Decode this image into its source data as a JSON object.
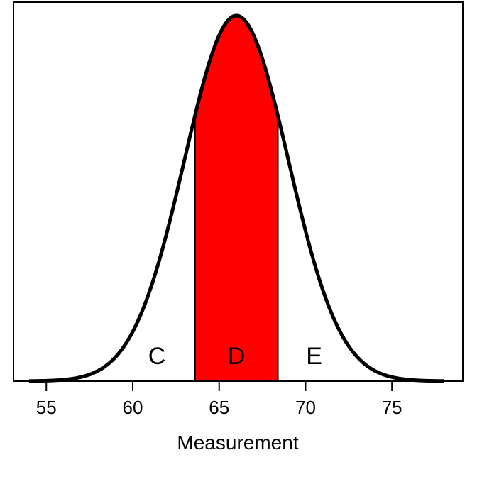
{
  "chart_data": {
    "type": "area",
    "title": "",
    "xlabel": "Measurement",
    "ylabel": "",
    "xlim": [
      53.1,
      79.1
    ],
    "x_ticks": [
      55,
      60,
      65,
      70,
      75
    ],
    "x_tick_labels": [
      "55",
      "60",
      "65",
      "70",
      "75"
    ],
    "y_ticks_shown": false,
    "grid": false,
    "legend": "none",
    "distribution": {
      "family": "normal",
      "mean": 66,
      "sd": 3
    },
    "curve_x_range": [
      54,
      78
    ],
    "shaded_region": {
      "from": 63.6,
      "to": 68.4,
      "color": "#ff0000"
    },
    "regions": [
      {
        "label": "C",
        "x": 61.4
      },
      {
        "label": "D",
        "x": 66.0
      },
      {
        "label": "E",
        "x": 70.5
      }
    ],
    "curve_color": "#000000"
  }
}
